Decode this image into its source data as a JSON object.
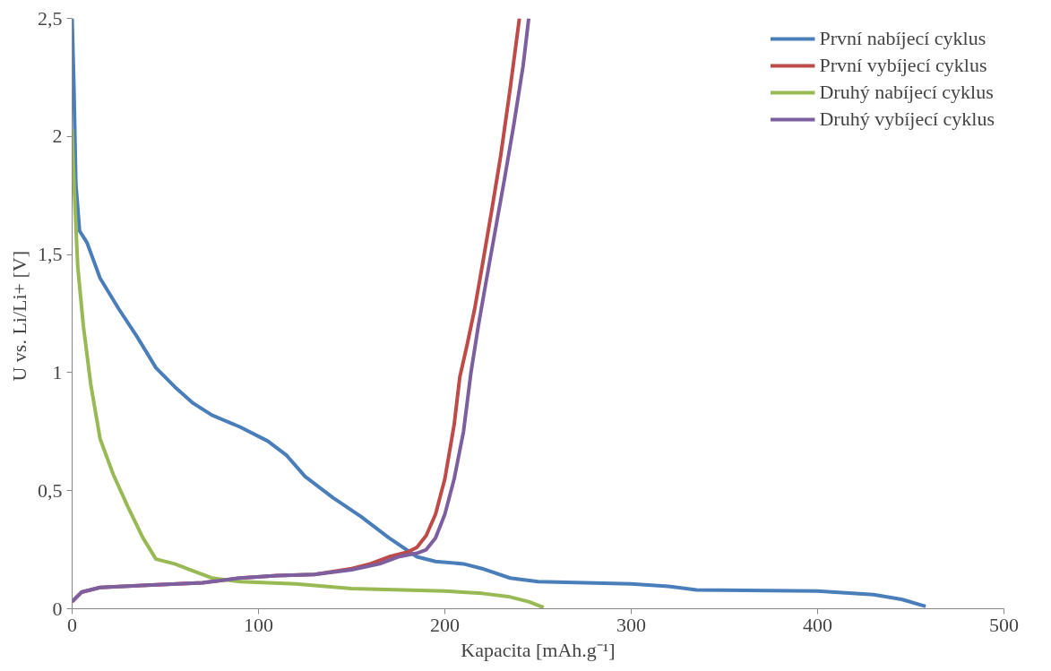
{
  "chart_data": {
    "type": "line",
    "xlabel": "Kapacita [mAh.g⁻¹]",
    "ylabel": "U vs. Li/Li+  [V]",
    "xlim": [
      0,
      500
    ],
    "ylim": [
      0,
      2.5
    ],
    "xticks": [
      0,
      100,
      200,
      300,
      400,
      500
    ],
    "yticks": [
      0,
      {
        "value": 0.5,
        "label": "0,5"
      },
      1,
      {
        "value": 1.5,
        "label": "1,5"
      },
      2,
      {
        "value": 2.5,
        "label": "2,5"
      }
    ],
    "grid": false,
    "legend": "top right",
    "marker": "none",
    "line_style": "solid",
    "series": [
      {
        "name": "První nabíjecí cyklus",
        "color": "#4a7ebb",
        "x": [
          0,
          1,
          2,
          4,
          8,
          15,
          25,
          35,
          45,
          55,
          65,
          75,
          90,
          105,
          115,
          125,
          140,
          155,
          170,
          185,
          195,
          210,
          220,
          235,
          250,
          300,
          320,
          335,
          400,
          430,
          445,
          458
        ],
        "values": [
          2.5,
          2.2,
          1.8,
          1.6,
          1.55,
          1.4,
          1.27,
          1.15,
          1.02,
          0.94,
          0.87,
          0.82,
          0.77,
          0.71,
          0.65,
          0.56,
          0.47,
          0.39,
          0.3,
          0.22,
          0.2,
          0.19,
          0.17,
          0.13,
          0.115,
          0.105,
          0.095,
          0.08,
          0.075,
          0.06,
          0.04,
          0.01
        ]
      },
      {
        "name": "První vybíjecí cyklus",
        "color": "#be4b48",
        "x": [
          0,
          5,
          15,
          40,
          70,
          90,
          110,
          130,
          150,
          160,
          170,
          180,
          185,
          190,
          195,
          200,
          205,
          208,
          212,
          216,
          220,
          225,
          230,
          235,
          240
        ],
        "values": [
          0.03,
          0.07,
          0.09,
          0.1,
          0.11,
          0.13,
          0.14,
          0.145,
          0.17,
          0.19,
          0.22,
          0.24,
          0.26,
          0.31,
          0.4,
          0.55,
          0.78,
          0.98,
          1.12,
          1.27,
          1.45,
          1.68,
          1.92,
          2.2,
          2.5
        ]
      },
      {
        "name": "Druhý nabíjecí cyklus",
        "color": "#98b954",
        "x": [
          0,
          1,
          3,
          6,
          10,
          15,
          22,
          30,
          38,
          45,
          55,
          65,
          75,
          90,
          120,
          150,
          200,
          220,
          235,
          245,
          253
        ],
        "values": [
          2.03,
          1.8,
          1.45,
          1.2,
          0.95,
          0.72,
          0.57,
          0.43,
          0.3,
          0.21,
          0.19,
          0.16,
          0.13,
          0.115,
          0.105,
          0.085,
          0.075,
          0.065,
          0.05,
          0.03,
          0.005
        ]
      },
      {
        "name": "Druhý vybíjecí cyklus",
        "color": "#7d5fa0",
        "x": [
          0,
          5,
          15,
          40,
          70,
          90,
          110,
          130,
          150,
          165,
          175,
          185,
          190,
          195,
          200,
          205,
          210,
          214,
          218,
          222,
          227,
          232,
          237,
          242,
          245
        ],
        "values": [
          0.03,
          0.07,
          0.09,
          0.1,
          0.11,
          0.13,
          0.14,
          0.145,
          0.165,
          0.19,
          0.22,
          0.235,
          0.25,
          0.3,
          0.4,
          0.55,
          0.75,
          1.0,
          1.2,
          1.38,
          1.6,
          1.82,
          2.05,
          2.3,
          2.5
        ]
      }
    ]
  }
}
